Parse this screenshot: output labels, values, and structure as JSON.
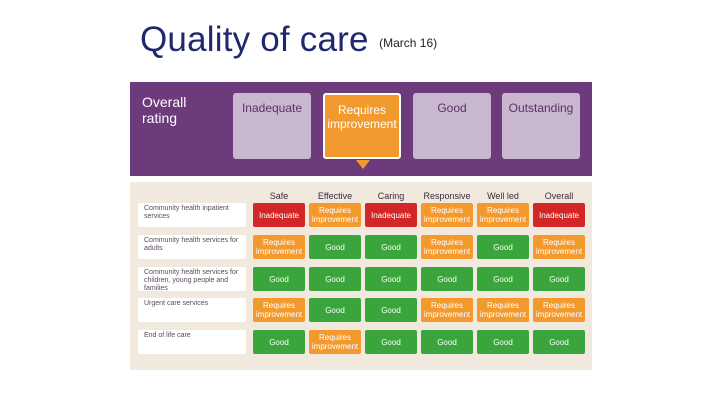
{
  "slide": {
    "title": "Quality of care",
    "subtitle": "(March 16)"
  },
  "rating_panel": {
    "overall_label_line1": "Overall",
    "overall_label_line2": "rating",
    "options": [
      "Inadequate",
      "Requires improvement",
      "Good",
      "Outstanding"
    ],
    "selected": "Requires improvement",
    "colors": {
      "panel": "#6d3a7c",
      "inactive": "#c9b6cf",
      "active": "#f39a2e"
    }
  },
  "grid": {
    "columns": [
      "Safe",
      "Effective",
      "Caring",
      "Responsive",
      "Well led",
      "Overall"
    ],
    "rows": [
      {
        "label": "Community health inpatient services",
        "cells": [
          "Inadequate",
          "Requires improvement",
          "Inadequate",
          "Requires improvement",
          "Requires improvement",
          "Inadequate"
        ]
      },
      {
        "label": "Community health services for adults",
        "cells": [
          "Requires improvement",
          "Good",
          "Good",
          "Requires improvement",
          "Good",
          "Requires improvement"
        ]
      },
      {
        "label": "Community health services for children, young people and families",
        "cells": [
          "Good",
          "Good",
          "Good",
          "Good",
          "Good",
          "Good"
        ]
      },
      {
        "label": "Urgent care services",
        "cells": [
          "Requires improvement",
          "Good",
          "Good",
          "Requires improvement",
          "Requires improvement",
          "Requires improvement"
        ]
      },
      {
        "label": "End of life care",
        "cells": [
          "Good",
          "Requires improvement",
          "Good",
          "Good",
          "Good",
          "Good"
        ]
      }
    ],
    "colors": {
      "Inadequate": "#d32727",
      "Requires improvement": "#f39a2e",
      "Good": "#3aa53d"
    }
  }
}
